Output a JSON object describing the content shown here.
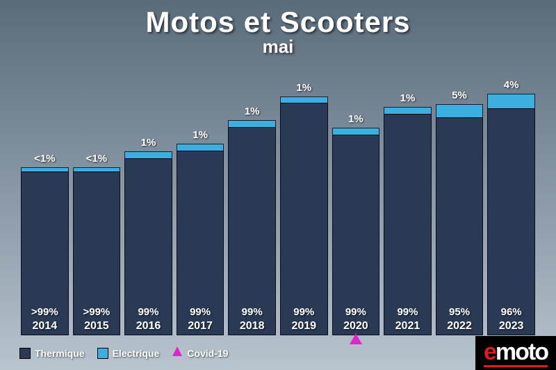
{
  "title": "Motos et Scooters",
  "subtitle": "mai",
  "colors": {
    "thermal": "#2a3a55",
    "electric": "#3bb0e0",
    "covid": "#e024c7",
    "text": "#ffffff",
    "logo_bg": "#000000",
    "logo_accent": "#e01b1b"
  },
  "chart": {
    "type": "stacked-bar",
    "max_total": 100,
    "bars": [
      {
        "year": "2014",
        "thermal_label": ">99%",
        "electric_label": "<1%",
        "total_height": 64,
        "electric_height": 1.5,
        "covid": false
      },
      {
        "year": "2015",
        "thermal_label": ">99%",
        "electric_label": "<1%",
        "total_height": 64,
        "electric_height": 1.5,
        "covid": false
      },
      {
        "year": "2016",
        "thermal_label": "99%",
        "electric_label": "1%",
        "total_height": 70,
        "electric_height": 2.5,
        "covid": false
      },
      {
        "year": "2017",
        "thermal_label": "99%",
        "electric_label": "1%",
        "total_height": 73,
        "electric_height": 2.5,
        "covid": false
      },
      {
        "year": "2018",
        "thermal_label": "99%",
        "electric_label": "1%",
        "total_height": 82,
        "electric_height": 2.5,
        "covid": false
      },
      {
        "year": "2019",
        "thermal_label": "99%",
        "electric_label": "1%",
        "total_height": 91,
        "electric_height": 2.5,
        "covid": false
      },
      {
        "year": "2020",
        "thermal_label": "99%",
        "electric_label": "1%",
        "total_height": 79,
        "electric_height": 2.5,
        "covid": true
      },
      {
        "year": "2021",
        "thermal_label": "99%",
        "electric_label": "1%",
        "total_height": 87,
        "electric_height": 2.5,
        "covid": false
      },
      {
        "year": "2022",
        "thermal_label": "95%",
        "electric_label": "5%",
        "total_height": 88,
        "electric_height": 5.0,
        "covid": false
      },
      {
        "year": "2023",
        "thermal_label": "96%",
        "electric_label": "4%",
        "total_height": 92,
        "electric_height": 5.5,
        "covid": false
      }
    ]
  },
  "legend": {
    "thermal": "Thermique",
    "electric": "Electrique",
    "covid": "Covid-19"
  },
  "logo": {
    "prefix": "e",
    "rest": "moto"
  }
}
